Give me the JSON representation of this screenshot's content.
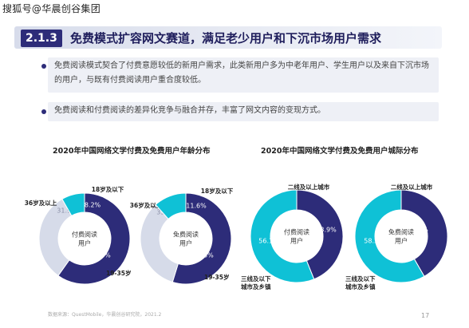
{
  "watermark": "搜狐号@华晨创谷集团",
  "header": {
    "section_num": "2.1.3",
    "title": "免费模式扩容网文赛道，满足老少用户和下沉市场用户需求"
  },
  "bullets": [
    "免费阅读模式契合了付费意愿较低的新用户需求，此类新用户多为中老年用户、学生用户以及来自下沉市场的用户，与既有付费阅读用户重合度较低。",
    "免费阅读和付费阅读的差异化竞争与融合并存，丰富了网文内容的变现方式。"
  ],
  "chart_titles": [
    "2020年中国网络文学付费及免费用户年龄分布",
    "2020年中国网络文学付费及免费用户城际分布"
  ],
  "footer": {
    "source": "数据来源：QuestMobile，华晨创谷研究院，2021.2",
    "page": "17"
  },
  "colors": {
    "navy": "#2d2c79",
    "cyan": "#0fc1d6",
    "light": "#d6dbe9"
  },
  "chart_data": [
    {
      "type": "pie",
      "center_label": "付费阅读用户",
      "slices": [
        {
          "label": "19-35岁",
          "value": 59.8,
          "color": "#2d2c79"
        },
        {
          "label": "36岁及以上",
          "value": 31.9,
          "color": "#d6dbe9"
        },
        {
          "label": "18岁及以下",
          "value": 8.2,
          "color": "#0fc1d6"
        }
      ]
    },
    {
      "type": "pie",
      "center_label": "免费阅读用户",
      "slices": [
        {
          "label": "19-35岁",
          "value": 54.8,
          "color": "#2d2c79"
        },
        {
          "label": "36岁及以上",
          "value": 33.7,
          "color": "#d6dbe9"
        },
        {
          "label": "18岁及以下",
          "value": 11.6,
          "color": "#0fc1d6"
        }
      ]
    },
    {
      "type": "pie",
      "center_label": "付费阅读用户",
      "slices": [
        {
          "label": "二线及以上城市",
          "value": 43.9,
          "color": "#2d2c79"
        },
        {
          "label": "三线及以下城市及乡镇",
          "value": 56.1,
          "color": "#0fc1d6"
        }
      ]
    },
    {
      "type": "pie",
      "center_label": "免费阅读用户",
      "slices": [
        {
          "label": "二线及以上城市",
          "value": 41.7,
          "color": "#2d2c79"
        },
        {
          "label": "三线及以下城市及乡镇",
          "value": 58.3,
          "color": "#0fc1d6"
        }
      ]
    }
  ]
}
